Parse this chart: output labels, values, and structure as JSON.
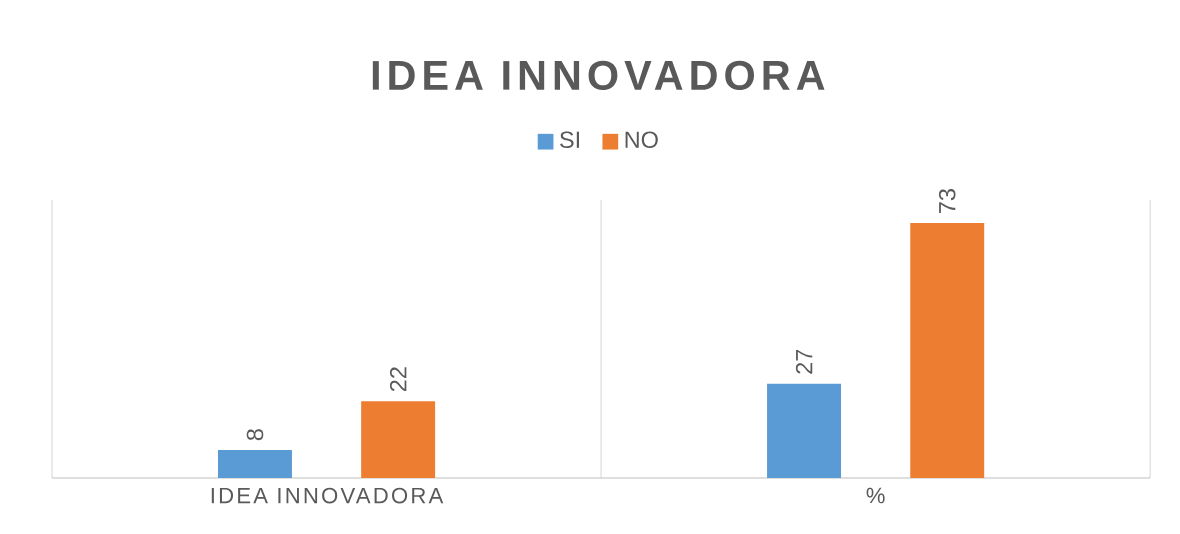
{
  "chart_data": {
    "type": "bar",
    "title": "IDEA INNOVADORA",
    "categories": [
      "IDEA INNOVADORA",
      "%"
    ],
    "series": [
      {
        "name": "SI",
        "color": "#5b9bd5",
        "values": [
          8,
          27
        ]
      },
      {
        "name": "NO",
        "color": "#ed7d31",
        "values": [
          22,
          73
        ]
      }
    ],
    "data_labels": true,
    "legend": "top",
    "grid": "x"
  }
}
